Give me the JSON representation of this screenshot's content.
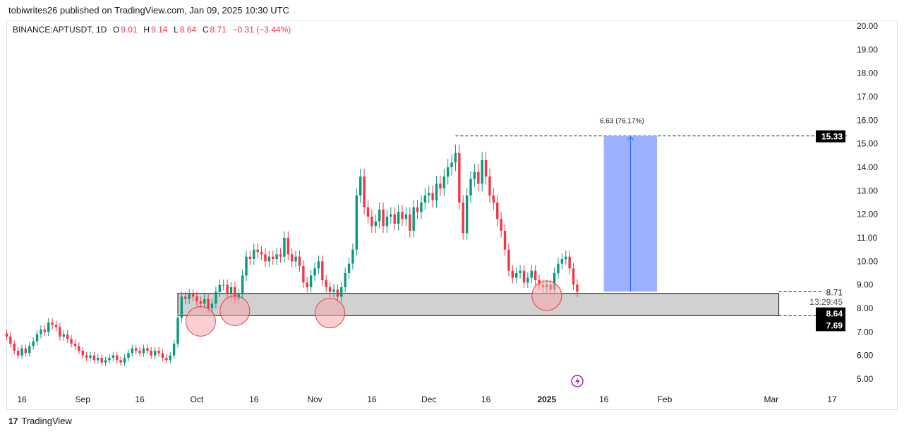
{
  "publisher": "tobiwrites26 published on TradingView.com, Jan 09, 2025 10:30 UTC",
  "legend": {
    "symbol": "BINANCE:APTUSDT, 1D",
    "o_label": "O",
    "o": "9.01",
    "h_label": "H",
    "h": "9.14",
    "l_label": "L",
    "l": "8.64",
    "c_label": "C",
    "c": "8.71",
    "change": "−0.31 (−3.44%)"
  },
  "footer": {
    "brand": "TradingView"
  },
  "colors": {
    "up": "#089981",
    "down": "#f23645",
    "zone": "#d1d1d1",
    "measure": "#9db2ff",
    "measure_line": "#2962ff",
    "circle": "#f7a8ad"
  },
  "chart_data": {
    "type": "candlestick",
    "symbol": "BINANCE:APTUSDT",
    "interval": "1D",
    "first_date": "2024-08-12",
    "last_date": "2025-01-09",
    "closes": [
      6.8,
      6.5,
      6.2,
      6.0,
      6.3,
      6.1,
      6.4,
      6.6,
      6.9,
      7.1,
      7.0,
      7.4,
      7.3,
      7.2,
      6.8,
      6.9,
      6.7,
      6.5,
      6.4,
      6.2,
      6.0,
      5.9,
      6.0,
      5.8,
      5.9,
      5.7,
      5.8,
      5.9,
      6.0,
      5.8,
      5.7,
      5.9,
      6.1,
      6.3,
      6.2,
      6.1,
      6.3,
      6.2,
      6.0,
      6.2,
      6.1,
      5.9,
      5.8,
      6.0,
      6.5,
      7.6,
      8.5,
      8.4,
      8.6,
      8.5,
      8.3,
      8.2,
      8.4,
      8.0,
      8.2,
      8.7,
      9.0,
      9.0,
      8.6,
      8.9,
      8.4,
      8.6,
      9.4,
      10.2,
      10.1,
      10.5,
      10.4,
      10.3,
      10.0,
      10.2,
      10.1,
      10.3,
      10.2,
      11.0,
      10.3,
      10.0,
      10.2,
      9.8,
      9.1,
      8.9,
      9.4,
      9.7,
      10.0,
      9.2,
      8.9,
      8.7,
      8.8,
      8.5,
      8.9,
      9.5,
      9.9,
      10.5,
      12.8,
      13.6,
      12.3,
      11.9,
      11.5,
      11.7,
      12.2,
      11.5,
      11.9,
      12.0,
      11.6,
      12.1,
      11.8,
      12.0,
      11.3,
      12.3,
      12.1,
      12.5,
      12.8,
      12.9,
      12.6,
      13.3,
      13.1,
      13.6,
      14.0,
      14.2,
      14.6,
      12.5,
      11.2,
      12.8,
      13.5,
      13.8,
      13.3,
      14.3,
      13.6,
      12.8,
      12.5,
      11.8,
      11.3,
      10.5,
      9.6,
      9.3,
      9.5,
      9.6,
      9.1,
      9.3,
      9.6,
      9.2,
      9.0,
      8.9,
      9.0,
      8.8,
      9.5,
      9.9,
      10.1,
      10.2,
      9.7,
      9.01,
      8.71
    ],
    "y_ticks": [
      "5.00",
      "6.00",
      "7.00",
      "8.00",
      "9.00",
      "10.00",
      "11.00",
      "12.00",
      "13.00",
      "14.00",
      "15.00",
      "16.00",
      "17.00",
      "18.00",
      "19.00",
      "20.00"
    ],
    "ylim": [
      5,
      20
    ],
    "x_ticks": [
      {
        "label": "16",
        "date": "2024-08-16"
      },
      {
        "label": "Sep",
        "date": "2024-09-01"
      },
      {
        "label": "16",
        "date": "2024-09-16"
      },
      {
        "label": "Oct",
        "date": "2024-10-01"
      },
      {
        "label": "16",
        "date": "2024-10-16"
      },
      {
        "label": "Nov",
        "date": "2024-11-01"
      },
      {
        "label": "16",
        "date": "2024-11-16"
      },
      {
        "label": "Dec",
        "date": "2024-12-01"
      },
      {
        "label": "16",
        "date": "2024-12-16"
      },
      {
        "label": "2025",
        "date": "2025-01-01"
      },
      {
        "label": "16",
        "date": "2025-01-16"
      },
      {
        "label": "Feb",
        "date": "2025-02-01"
      },
      {
        "label": "Mar",
        "date": "2025-03-01"
      },
      {
        "label": "17",
        "date": "2025-03-17"
      }
    ],
    "support_zone": {
      "low": 7.69,
      "high": 8.64,
      "from": "2024-09-27",
      "to": "2025-03-03"
    },
    "measure": {
      "from_price": 8.71,
      "to_price": 15.33,
      "from": "2025-01-16",
      "to": "2025-01-30",
      "label": "6.63 (76.17%)"
    },
    "target_line": {
      "price": 15.33,
      "from": "2024-12-08"
    },
    "highlight_circles": [
      {
        "date": "2024-10-02",
        "price": 7.45
      },
      {
        "date": "2024-10-11",
        "price": 7.9
      },
      {
        "date": "2024-11-05",
        "price": 7.8
      },
      {
        "date": "2025-01-01",
        "price": 8.54
      }
    ],
    "price_labels": [
      {
        "text": "15.33",
        "price": 15.33,
        "style": "box"
      },
      {
        "text": "8.71",
        "price": 8.71,
        "style": "plain"
      },
      {
        "text": "13:29:45",
        "price": 8.3,
        "style": "countdown"
      },
      {
        "text": "8.64",
        "price": 7.8,
        "style": "box"
      },
      {
        "text": "7.69",
        "price": 7.3,
        "style": "box"
      }
    ]
  }
}
